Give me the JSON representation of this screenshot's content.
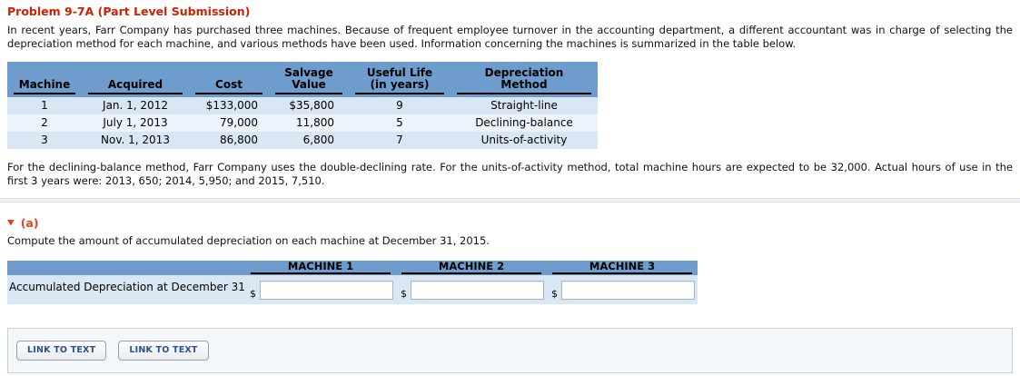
{
  "colors": {
    "title_red": "#cc2200",
    "section_orange": "#e8401a",
    "table_header_blue": "#6d9ccd",
    "row_blue_dark": "#d9e6f4",
    "row_blue_light": "#edf3fa",
    "link_blue": "#2a4d9e",
    "panel_bg": "#f4f7fa"
  },
  "page": {
    "title": "Problem 9-7A (Part Level Submission)",
    "intro": "In recent years, Farr Company has purchased three machines. Because of frequent employee turnover in the accounting department, a different accountant was in charge of selecting the depreciation method for each machine, and various methods have been used. Information concerning the machines is summarized in the table below.",
    "details": "For the declining-balance method, Farr Company uses the double-declining rate. For the units-of-activity method, total machine hours are expected to be 32,000. Actual hours of use in the first 3 years were: 2013, 650; 2014, 5,950; and 2015, 7,510."
  },
  "machines_table": {
    "columns": [
      "Machine",
      "Acquired",
      "Cost",
      "Salvage\nValue",
      "Useful Life\n(in years)",
      "Depreciation\nMethod"
    ],
    "rows": [
      [
        "1",
        "Jan. 1, 2012",
        "$133,000",
        "$35,800",
        "9",
        "Straight-line"
      ],
      [
        "2",
        "July 1, 2013",
        "79,000",
        "11,800",
        "5",
        "Declining-balance"
      ],
      [
        "3",
        "Nov. 1, 2013",
        "86,800",
        "6,800",
        "7",
        "Units-of-activity"
      ]
    ]
  },
  "section_a": {
    "collapse_icon": "▼",
    "label": "(a)",
    "instruction": "Compute the amount of accumulated depreciation on each machine at December 31, 2015.",
    "answer_table": {
      "machine_headers": [
        "MACHINE 1",
        "MACHINE 2",
        "MACHINE 3"
      ],
      "row_label": "Accumulated Depreciation at December 31",
      "currency_symbol": "$",
      "inputs": [
        "",
        "",
        ""
      ]
    }
  },
  "footer": {
    "buttons": [
      "LINK TO TEXT",
      "LINK TO TEXT"
    ]
  }
}
